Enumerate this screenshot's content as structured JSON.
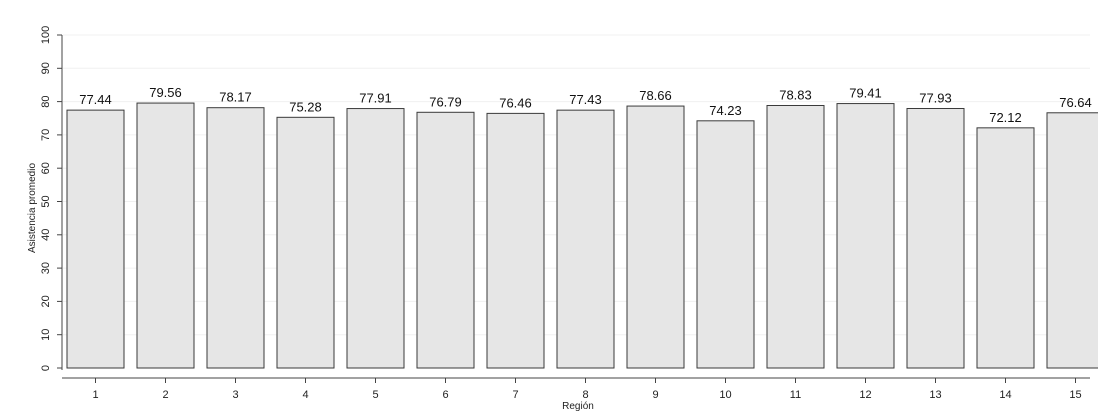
{
  "chart_data": {
    "type": "bar",
    "categories": [
      "1",
      "2",
      "3",
      "4",
      "5",
      "6",
      "7",
      "8",
      "9",
      "10",
      "11",
      "12",
      "13",
      "14",
      "15"
    ],
    "values": [
      77.44,
      79.56,
      78.17,
      75.28,
      77.91,
      76.79,
      76.46,
      77.43,
      78.66,
      74.23,
      78.83,
      79.41,
      77.93,
      72.12,
      76.64
    ],
    "data_labels": [
      "77.44",
      "79.56",
      "78.17",
      "75.28",
      "77.91",
      "76.79",
      "76.46",
      "77.43",
      "78.66",
      "74.23",
      "78.83",
      "79.41",
      "77.93",
      "72.12",
      "76.64"
    ],
    "xlabel": "Región",
    "ylabel": "Asistencia promedio",
    "ylim": [
      0,
      100
    ],
    "yticks": [
      0,
      10,
      20,
      30,
      40,
      50,
      60,
      70,
      80,
      90,
      100
    ],
    "grid": true,
    "colors": {
      "bar_fill": "#e6e6e6",
      "bar_stroke": "#3a3a3a"
    }
  }
}
